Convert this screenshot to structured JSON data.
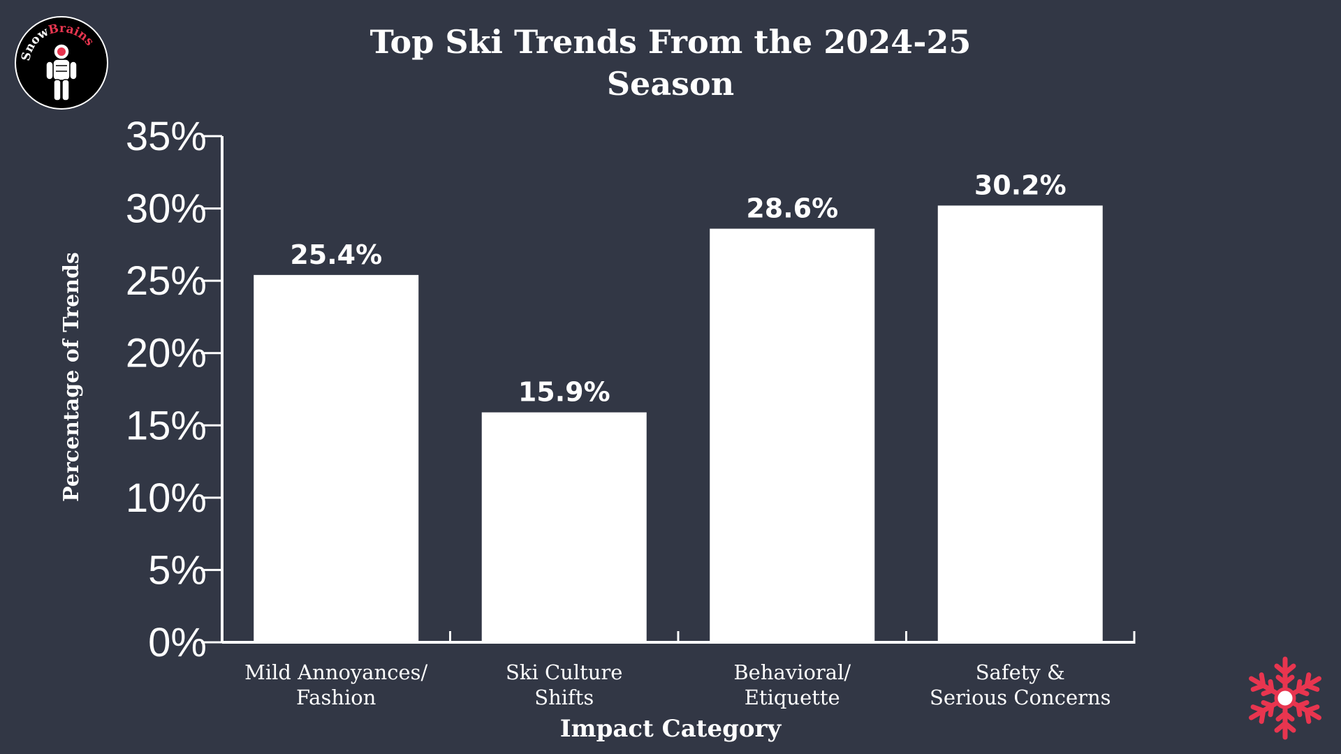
{
  "logo": {
    "text_part1": "Snow",
    "text_part2": "Brains",
    "icon": "astronaut-icon",
    "accent_color": "#e8354f"
  },
  "decoration": {
    "icon": "snowflake-icon",
    "color": "#e8354f"
  },
  "colors": {
    "background": "#323745",
    "bars": "#ffffff",
    "text": "#ffffff"
  },
  "chart_data": {
    "type": "bar",
    "title_lines": [
      "Top Ski Trends From the 2024-25",
      "Season"
    ],
    "xlabel": "Impact Category",
    "ylabel": "Percentage of Trends",
    "categories": [
      [
        "Mild Annoyances/",
        "Fashion"
      ],
      [
        "Ski Culture",
        "Shifts"
      ],
      [
        "Behavioral/",
        "Etiquette"
      ],
      [
        "Safety &",
        "Serious Concerns"
      ]
    ],
    "values": [
      25.4,
      15.9,
      28.6,
      30.2
    ],
    "value_labels": [
      "25.4%",
      "15.9%",
      "28.6%",
      "30.2%"
    ],
    "ylim": [
      0,
      35
    ],
    "yticks": [
      0,
      5,
      10,
      15,
      20,
      25,
      30,
      35
    ],
    "ytick_labels": [
      "0%",
      "5%",
      "10%",
      "15%",
      "20%",
      "25%",
      "30%",
      "35%"
    ],
    "grid": false,
    "legend": "none"
  }
}
